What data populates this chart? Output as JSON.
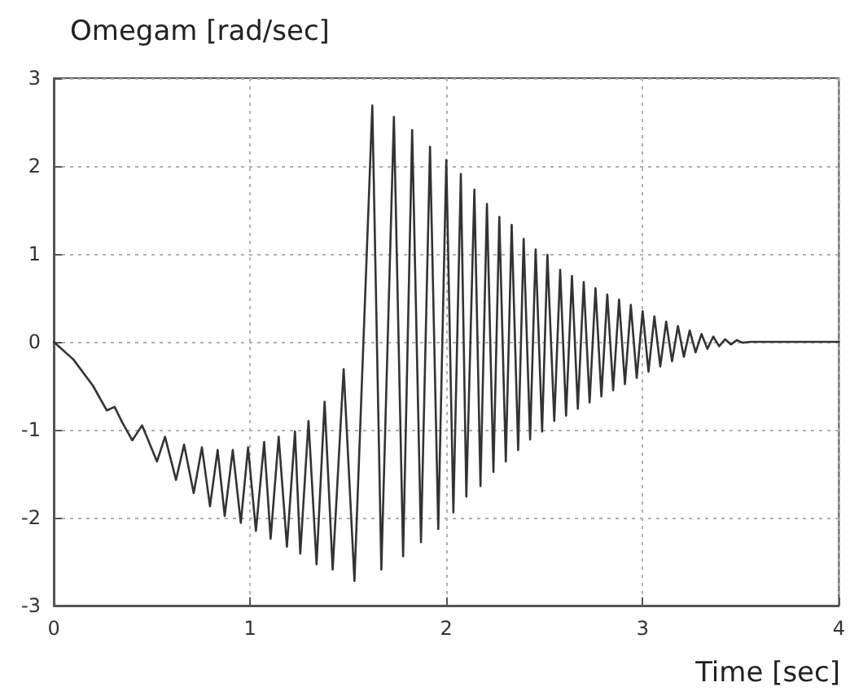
{
  "chart_data": {
    "type": "line",
    "title": "Omegam [rad/sec]",
    "xlabel": "Time [sec]",
    "xlim": [
      0,
      4
    ],
    "xticks": [
      0,
      1,
      2,
      3,
      4
    ],
    "ylim": [
      -3,
      3
    ],
    "yticks": [
      -3,
      -2,
      -1,
      0,
      1,
      2,
      3
    ],
    "grid": true,
    "marker": "none",
    "line_style": "solid",
    "series": [
      {
        "color": "#333333",
        "x": [
          0,
          0.1,
          0.2,
          0.27,
          0.31,
          0.35,
          0.4,
          0.45,
          0.526,
          0.567,
          0.623,
          0.664,
          0.713,
          0.755,
          0.796,
          0.835,
          0.871,
          0.912,
          0.953,
          0.99,
          1.03,
          1.072,
          1.105,
          1.146,
          1.188,
          1.229,
          1.256,
          1.298,
          1.339,
          1.38,
          1.421,
          1.477,
          1.532,
          1.623,
          1.669,
          1.733,
          1.78,
          1.826,
          1.871,
          1.917,
          1.959,
          2.0,
          2.036,
          2.074,
          2.102,
          2.143,
          2.174,
          2.207,
          2.24,
          2.27,
          2.303,
          2.333,
          2.366,
          2.394,
          2.427,
          2.455,
          2.488,
          2.515,
          2.55,
          2.58,
          2.61,
          2.64,
          2.67,
          2.7,
          2.73,
          2.76,
          2.79,
          2.82,
          2.85,
          2.88,
          2.91,
          2.94,
          2.97,
          3.0,
          3.03,
          3.06,
          3.09,
          3.12,
          3.15,
          3.18,
          3.21,
          3.24,
          3.27,
          3.3,
          3.33,
          3.36,
          3.39,
          3.42,
          3.45,
          3.48,
          3.51,
          3.55,
          4.0
        ],
        "values": [
          0,
          -0.2,
          -0.5,
          -0.78,
          -0.74,
          -0.92,
          -1.12,
          -0.95,
          -1.36,
          -1.08,
          -1.57,
          -1.17,
          -1.72,
          -1.2,
          -1.87,
          -1.23,
          -1.98,
          -1.23,
          -2.06,
          -1.2,
          -2.15,
          -1.14,
          -2.24,
          -1.08,
          -2.33,
          -1.02,
          -2.41,
          -0.9,
          -2.53,
          -0.68,
          -2.59,
          -0.31,
          -2.72,
          2.69,
          -2.59,
          2.56,
          -2.44,
          2.41,
          -2.28,
          2.22,
          -2.13,
          2.07,
          -1.94,
          1.91,
          -1.76,
          1.73,
          -1.64,
          1.57,
          -1.48,
          1.42,
          -1.36,
          1.33,
          -1.23,
          1.17,
          -1.11,
          1.05,
          -1.02,
          0.99,
          -0.9,
          0.82,
          -0.84,
          0.75,
          -0.76,
          0.68,
          -0.69,
          0.61,
          -0.62,
          0.54,
          -0.55,
          0.48,
          -0.48,
          0.42,
          -0.41,
          0.35,
          -0.34,
          0.29,
          -0.28,
          0.23,
          -0.22,
          0.18,
          -0.17,
          0.13,
          -0.12,
          0.09,
          -0.08,
          0.06,
          -0.05,
          0.03,
          -0.03,
          0.02,
          -0.01,
          0,
          0
        ]
      }
    ]
  }
}
